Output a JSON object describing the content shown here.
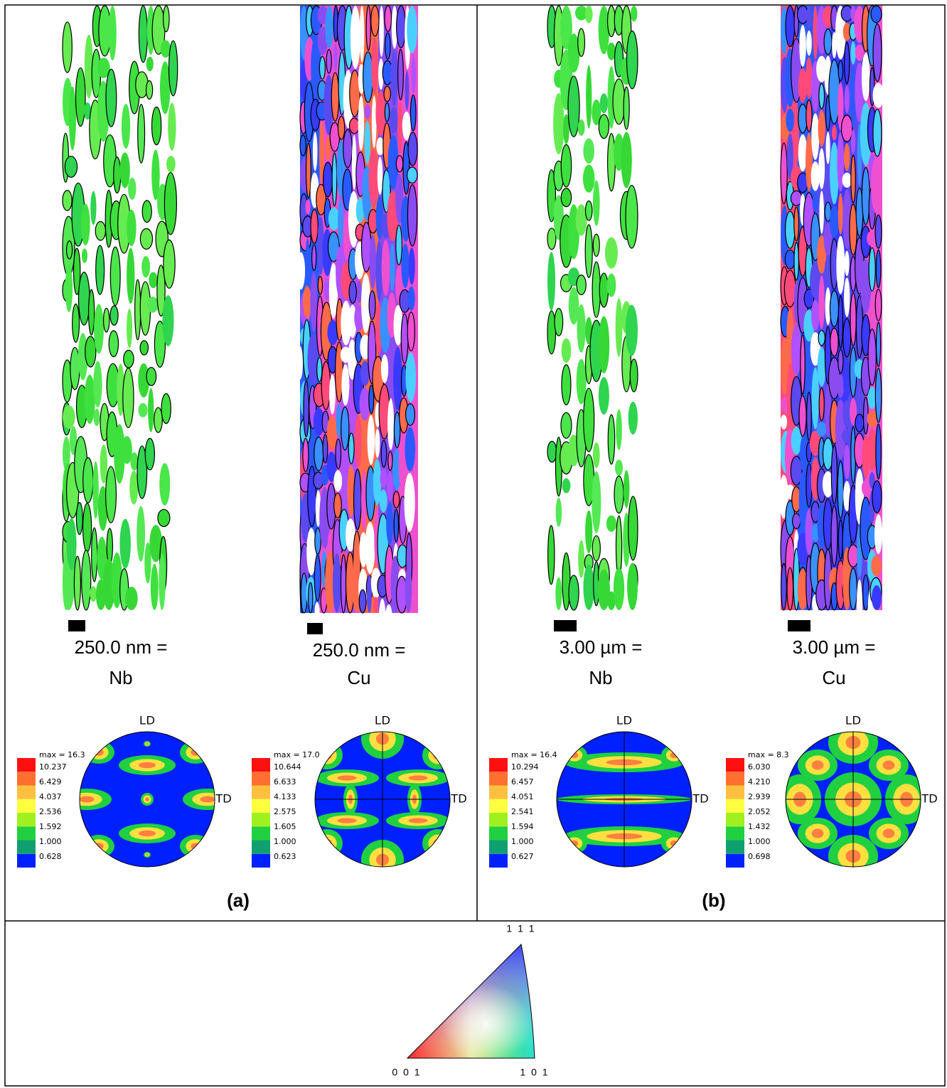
{
  "panels": [
    {
      "label": "(a)",
      "samples": [
        {
          "scale": "250.0 nm =",
          "phase": "Nb",
          "pole_figure": {
            "ld": "LD",
            "td": "TD",
            "max": "max = 16.3",
            "levels": [
              "10.237",
              "6.429",
              "4.037",
              "2.536",
              "1.592",
              "1.000",
              "0.628"
            ]
          }
        },
        {
          "scale": "250.0 nm =",
          "phase": "Cu",
          "pole_figure": {
            "ld": "LD",
            "td": "TD",
            "max": "max = 17.0",
            "levels": [
              "10.644",
              "6.633",
              "4.133",
              "2.575",
              "1.605",
              "1.000",
              "0.623"
            ]
          }
        }
      ]
    },
    {
      "label": "(b)",
      "samples": [
        {
          "scale": "3.00 µm =",
          "phase": "Nb",
          "pole_figure": {
            "ld": "LD",
            "td": "TD",
            "max": "max = 16.4",
            "levels": [
              "10.294",
              "6.457",
              "4.051",
              "2.541",
              "1.594",
              "1.000",
              "0.627"
            ]
          }
        },
        {
          "scale": "3.00 µm =",
          "phase": "Cu",
          "pole_figure": {
            "ld": "LD",
            "td": "TD",
            "max": "max = 8.3",
            "levels": [
              "6.030",
              "4.210",
              "2.939",
              "2.052",
              "1.432",
              "1.000",
              "0.698"
            ]
          }
        }
      ]
    }
  ],
  "color_key": {
    "top": "1 1 1",
    "left": "0 0 1",
    "right": "1 0 1"
  }
}
